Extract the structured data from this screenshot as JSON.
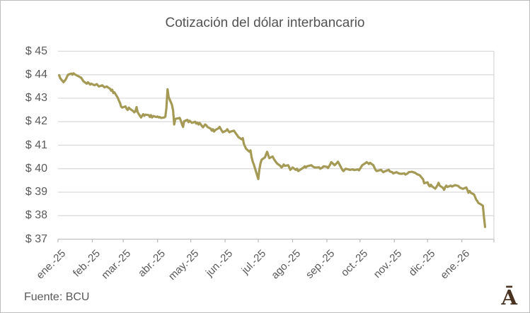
{
  "chart_data": {
    "type": "line",
    "title": "Cotización del dólar interbancario",
    "source_note": "Fuente: BCU",
    "logo_glyph": "Ā",
    "ylabel": "",
    "xlabel": "",
    "ylim": [
      37,
      45
    ],
    "y_tick_labels": [
      "$ 45",
      "$ 44",
      "$ 43",
      "$ 42",
      "$ 41",
      "$ 40",
      "$ 39",
      "$ 38",
      "$ 37"
    ],
    "x_tick_labels": [
      "ene.-25",
      "feb.-25",
      "mar.-25",
      "abr.-25",
      "may.-25",
      "jun.-25",
      "jul.-25",
      "ago.-25",
      "sep.-25",
      "oct.-25",
      "nov.-25",
      "dic.-25",
      "ene.-26"
    ],
    "grid": true,
    "legend": "none",
    "colors": {
      "line": "#a49a55",
      "grid": "#d9d9d9",
      "axis": "#bfbfbf",
      "text": "#595959",
      "title": "#535353",
      "logo": "#4a3320",
      "border": "#bdbdbd"
    },
    "series": [
      {
        "points": [
          [
            "2025-01-02",
            43.98
          ],
          [
            "2025-01-03",
            43.85
          ],
          [
            "2025-01-06",
            43.68
          ],
          [
            "2025-01-08",
            43.8
          ],
          [
            "2025-01-09",
            43.9
          ],
          [
            "2025-01-10",
            44.0
          ],
          [
            "2025-01-13",
            44.05
          ],
          [
            "2025-01-14",
            44.0
          ],
          [
            "2025-01-15",
            44.06
          ],
          [
            "2025-01-16",
            44.02
          ],
          [
            "2025-01-20",
            43.92
          ],
          [
            "2025-01-22",
            43.87
          ],
          [
            "2025-01-24",
            43.72
          ],
          [
            "2025-01-27",
            43.62
          ],
          [
            "2025-01-28",
            43.68
          ],
          [
            "2025-01-30",
            43.58
          ],
          [
            "2025-01-31",
            43.62
          ],
          [
            "2025-02-03",
            43.55
          ],
          [
            "2025-02-05",
            43.6
          ],
          [
            "2025-02-07",
            43.5
          ],
          [
            "2025-02-10",
            43.55
          ],
          [
            "2025-02-12",
            43.46
          ],
          [
            "2025-02-14",
            43.5
          ],
          [
            "2025-02-17",
            43.4
          ],
          [
            "2025-02-18",
            43.32
          ],
          [
            "2025-02-19",
            43.36
          ],
          [
            "2025-02-20",
            43.22
          ],
          [
            "2025-02-21",
            43.25
          ],
          [
            "2025-02-24",
            43.02
          ],
          [
            "2025-02-25",
            42.9
          ],
          [
            "2025-02-26",
            42.8
          ],
          [
            "2025-02-27",
            42.65
          ],
          [
            "2025-02-28",
            42.6
          ],
          [
            "2025-03-03",
            42.65
          ],
          [
            "2025-03-04",
            42.55
          ],
          [
            "2025-03-05",
            42.5
          ],
          [
            "2025-03-06",
            42.6
          ],
          [
            "2025-03-07",
            42.55
          ],
          [
            "2025-03-10",
            42.45
          ],
          [
            "2025-03-11",
            42.4
          ],
          [
            "2025-03-12",
            42.45
          ],
          [
            "2025-03-13",
            42.62
          ],
          [
            "2025-03-14",
            42.4
          ],
          [
            "2025-03-17",
            42.18
          ],
          [
            "2025-03-18",
            42.25
          ],
          [
            "2025-03-19",
            42.32
          ],
          [
            "2025-03-20",
            42.25
          ],
          [
            "2025-03-21",
            42.3
          ],
          [
            "2025-03-24",
            42.28
          ],
          [
            "2025-03-25",
            42.2
          ],
          [
            "2025-03-26",
            42.28
          ],
          [
            "2025-03-27",
            42.18
          ],
          [
            "2025-03-28",
            42.24
          ],
          [
            "2025-03-31",
            42.2
          ],
          [
            "2025-04-01",
            42.22
          ],
          [
            "2025-04-02",
            42.18
          ],
          [
            "2025-04-03",
            42.2
          ],
          [
            "2025-04-04",
            42.16
          ],
          [
            "2025-04-07",
            42.18
          ],
          [
            "2025-04-08",
            42.22
          ],
          [
            "2025-04-09",
            42.6
          ],
          [
            "2025-04-10",
            43.38
          ],
          [
            "2025-04-11",
            43.05
          ],
          [
            "2025-04-14",
            42.72
          ],
          [
            "2025-04-15",
            42.48
          ],
          [
            "2025-04-16",
            41.88
          ],
          [
            "2025-04-17",
            42.12
          ],
          [
            "2025-04-21",
            42.16
          ],
          [
            "2025-04-22",
            42.05
          ],
          [
            "2025-04-23",
            41.9
          ],
          [
            "2025-04-24",
            41.78
          ],
          [
            "2025-04-25",
            42.02
          ],
          [
            "2025-04-28",
            42.08
          ],
          [
            "2025-04-29",
            41.98
          ],
          [
            "2025-04-30",
            42.04
          ],
          [
            "2025-05-02",
            41.95
          ],
          [
            "2025-05-05",
            42.0
          ],
          [
            "2025-05-06",
            41.92
          ],
          [
            "2025-05-07",
            41.96
          ],
          [
            "2025-05-08",
            41.88
          ],
          [
            "2025-05-09",
            41.95
          ],
          [
            "2025-05-12",
            41.76
          ],
          [
            "2025-05-13",
            41.82
          ],
          [
            "2025-05-14",
            41.88
          ],
          [
            "2025-05-15",
            41.85
          ],
          [
            "2025-05-16",
            41.78
          ],
          [
            "2025-05-19",
            41.7
          ],
          [
            "2025-05-20",
            41.62
          ],
          [
            "2025-05-21",
            41.68
          ],
          [
            "2025-05-22",
            41.58
          ],
          [
            "2025-05-23",
            41.64
          ],
          [
            "2025-05-26",
            41.72
          ],
          [
            "2025-05-27",
            41.78
          ],
          [
            "2025-05-28",
            41.7
          ],
          [
            "2025-05-29",
            41.62
          ],
          [
            "2025-05-30",
            41.55
          ],
          [
            "2025-06-02",
            41.62
          ],
          [
            "2025-06-03",
            41.68
          ],
          [
            "2025-06-04",
            41.6
          ],
          [
            "2025-06-05",
            41.55
          ],
          [
            "2025-06-06",
            41.58
          ],
          [
            "2025-06-09",
            41.62
          ],
          [
            "2025-06-10",
            41.55
          ],
          [
            "2025-06-11",
            41.48
          ],
          [
            "2025-06-12",
            41.42
          ],
          [
            "2025-06-13",
            41.35
          ],
          [
            "2025-06-16",
            41.25
          ],
          [
            "2025-06-17",
            41.3
          ],
          [
            "2025-06-18",
            41.05
          ],
          [
            "2025-06-19",
            40.95
          ],
          [
            "2025-06-20",
            40.85
          ],
          [
            "2025-06-23",
            40.72
          ],
          [
            "2025-06-24",
            40.78
          ],
          [
            "2025-06-25",
            40.48
          ],
          [
            "2025-06-26",
            40.3
          ],
          [
            "2025-06-27",
            40.18
          ],
          [
            "2025-06-30",
            39.72
          ],
          [
            "2025-07-01",
            39.56
          ],
          [
            "2025-07-02",
            39.95
          ],
          [
            "2025-07-03",
            40.22
          ],
          [
            "2025-07-04",
            40.38
          ],
          [
            "2025-07-07",
            40.48
          ],
          [
            "2025-07-08",
            40.6
          ],
          [
            "2025-07-09",
            40.72
          ],
          [
            "2025-07-10",
            40.58
          ],
          [
            "2025-07-11",
            40.45
          ],
          [
            "2025-07-14",
            40.52
          ],
          [
            "2025-07-15",
            40.42
          ],
          [
            "2025-07-16",
            40.35
          ],
          [
            "2025-07-17",
            40.28
          ],
          [
            "2025-07-18",
            40.22
          ],
          [
            "2025-07-21",
            40.12
          ],
          [
            "2025-07-22",
            40.05
          ],
          [
            "2025-07-23",
            40.1
          ],
          [
            "2025-07-24",
            40.18
          ],
          [
            "2025-07-25",
            40.12
          ],
          [
            "2025-07-28",
            40.15
          ],
          [
            "2025-07-29",
            40.05
          ],
          [
            "2025-07-30",
            39.95
          ],
          [
            "2025-07-31",
            40.0
          ],
          [
            "2025-08-01",
            40.05
          ],
          [
            "2025-08-04",
            39.95
          ],
          [
            "2025-08-05",
            40.0
          ],
          [
            "2025-08-06",
            39.9
          ],
          [
            "2025-08-08",
            39.96
          ],
          [
            "2025-08-11",
            40.05
          ],
          [
            "2025-08-12",
            40.1
          ],
          [
            "2025-08-13",
            40.05
          ],
          [
            "2025-08-14",
            40.1
          ],
          [
            "2025-08-18",
            40.15
          ],
          [
            "2025-08-19",
            40.1
          ],
          [
            "2025-08-21",
            40.05
          ],
          [
            "2025-08-25",
            40.06
          ],
          [
            "2025-08-26",
            40.0
          ],
          [
            "2025-08-28",
            40.05
          ],
          [
            "2025-08-29",
            40.1
          ],
          [
            "2025-09-01",
            40.08
          ],
          [
            "2025-09-02",
            40.03
          ],
          [
            "2025-09-04",
            40.18
          ],
          [
            "2025-09-05",
            40.28
          ],
          [
            "2025-09-08",
            40.15
          ],
          [
            "2025-09-10",
            40.24
          ],
          [
            "2025-09-11",
            40.3
          ],
          [
            "2025-09-15",
            39.95
          ],
          [
            "2025-09-16",
            39.9
          ],
          [
            "2025-09-18",
            40.0
          ],
          [
            "2025-09-22",
            39.95
          ],
          [
            "2025-09-24",
            39.97
          ],
          [
            "2025-09-26",
            39.94
          ],
          [
            "2025-09-29",
            39.97
          ],
          [
            "2025-09-30",
            39.93
          ],
          [
            "2025-10-01",
            40.0
          ],
          [
            "2025-10-03",
            40.15
          ],
          [
            "2025-10-06",
            40.24
          ],
          [
            "2025-10-07",
            40.28
          ],
          [
            "2025-10-09",
            40.2
          ],
          [
            "2025-10-10",
            40.25
          ],
          [
            "2025-10-13",
            40.15
          ],
          [
            "2025-10-15",
            39.95
          ],
          [
            "2025-10-16",
            39.9
          ],
          [
            "2025-10-20",
            39.95
          ],
          [
            "2025-10-22",
            39.85
          ],
          [
            "2025-10-24",
            39.9
          ],
          [
            "2025-10-27",
            39.95
          ],
          [
            "2025-10-28",
            39.88
          ],
          [
            "2025-10-30",
            39.85
          ],
          [
            "2025-10-31",
            39.8
          ],
          [
            "2025-11-03",
            39.85
          ],
          [
            "2025-11-05",
            39.8
          ],
          [
            "2025-11-07",
            39.78
          ],
          [
            "2025-11-10",
            39.8
          ],
          [
            "2025-11-11",
            39.75
          ],
          [
            "2025-11-13",
            39.8
          ],
          [
            "2025-11-14",
            39.85
          ],
          [
            "2025-11-17",
            39.87
          ],
          [
            "2025-11-18",
            39.85
          ],
          [
            "2025-11-20",
            39.82
          ],
          [
            "2025-11-21",
            39.78
          ],
          [
            "2025-11-24",
            39.72
          ],
          [
            "2025-11-26",
            39.6
          ],
          [
            "2025-11-27",
            39.55
          ],
          [
            "2025-11-28",
            39.38
          ],
          [
            "2025-12-01",
            39.42
          ],
          [
            "2025-12-02",
            39.3
          ],
          [
            "2025-12-03",
            39.25
          ],
          [
            "2025-12-04",
            39.32
          ],
          [
            "2025-12-05",
            39.25
          ],
          [
            "2025-12-08",
            39.15
          ],
          [
            "2025-12-09",
            39.22
          ],
          [
            "2025-12-10",
            39.3
          ],
          [
            "2025-12-11",
            39.4
          ],
          [
            "2025-12-12",
            39.28
          ],
          [
            "2025-12-15",
            39.18
          ],
          [
            "2025-12-16",
            39.1
          ],
          [
            "2025-12-17",
            39.22
          ],
          [
            "2025-12-18",
            39.28
          ],
          [
            "2025-12-19",
            39.22
          ],
          [
            "2025-12-22",
            39.28
          ],
          [
            "2025-12-23",
            39.24
          ],
          [
            "2025-12-26",
            39.3
          ],
          [
            "2025-12-29",
            39.26
          ],
          [
            "2025-12-30",
            39.2
          ],
          [
            "2026-01-02",
            39.14
          ],
          [
            "2026-01-05",
            39.2
          ],
          [
            "2026-01-06",
            39.1
          ],
          [
            "2026-01-07",
            38.98
          ],
          [
            "2026-01-08",
            39.05
          ],
          [
            "2026-01-09",
            38.98
          ],
          [
            "2026-01-12",
            38.9
          ],
          [
            "2026-01-13",
            38.8
          ],
          [
            "2026-01-14",
            38.68
          ],
          [
            "2026-01-15",
            38.62
          ],
          [
            "2026-01-16",
            38.54
          ],
          [
            "2026-01-19",
            38.46
          ],
          [
            "2026-01-20",
            38.42
          ],
          [
            "2026-01-21",
            37.95
          ],
          [
            "2026-01-22",
            37.52
          ]
        ]
      }
    ]
  }
}
